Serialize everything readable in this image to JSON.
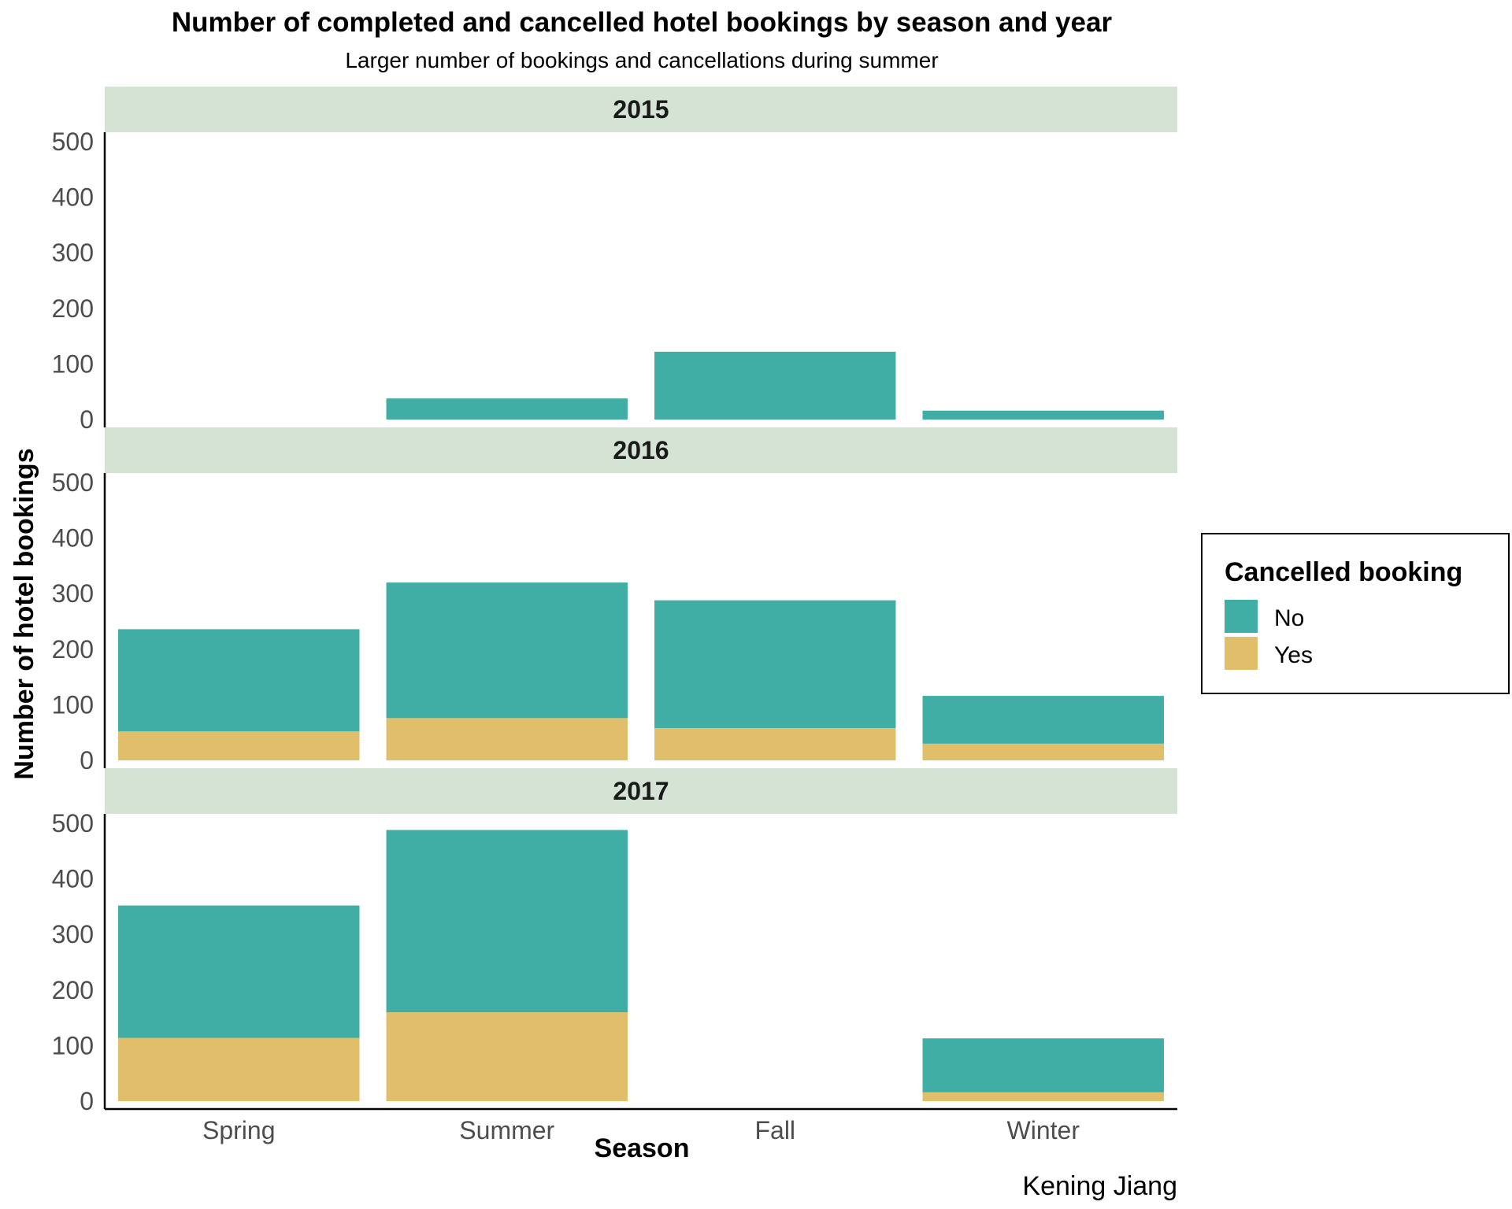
{
  "chart_data": {
    "type": "bar",
    "stacked": true,
    "title": "Number of completed and cancelled hotel bookings by season and year",
    "subtitle": "Larger number of bookings and cancellations during summer",
    "xlabel": "Season",
    "ylabel": "Number of hotel bookings",
    "caption": "Kening Jiang",
    "categories": [
      "Spring",
      "Summer",
      "Fall",
      "Winter"
    ],
    "ylim": [
      0,
      500
    ],
    "yticks": [
      "0",
      "100",
      "200",
      "300",
      "400",
      "500"
    ],
    "legend": {
      "title": "Cancelled booking",
      "position": "right",
      "entries": [
        {
          "label": "No",
          "color": "#41AEA5"
        },
        {
          "label": "Yes",
          "color": "#E0BE6A"
        }
      ]
    },
    "strip_color": "#D4E3D4",
    "panels": [
      {
        "label": "2015",
        "series": [
          {
            "name": "Yes",
            "values": [
              0,
              0,
              0,
              0
            ]
          },
          {
            "name": "No",
            "values": [
              0,
              38,
              122,
              16
            ]
          }
        ]
      },
      {
        "label": "2016",
        "series": [
          {
            "name": "Yes",
            "values": [
              52,
              76,
              58,
              30
            ]
          },
          {
            "name": "No",
            "values": [
              184,
              244,
              230,
              86
            ]
          }
        ]
      },
      {
        "label": "2017",
        "series": [
          {
            "name": "Yes",
            "values": [
              114,
              160,
              0,
              16
            ]
          },
          {
            "name": "No",
            "values": [
              238,
              328,
              0,
              97
            ]
          }
        ]
      }
    ]
  }
}
